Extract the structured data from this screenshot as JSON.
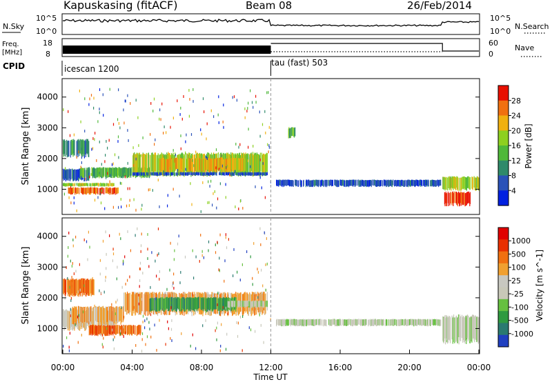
{
  "header": {
    "station": "Kapuskasing (fitACF)",
    "beam": "Beam 08",
    "date": "26/Feb/2014"
  },
  "panels": {
    "nsky": {
      "label": "N.Sky",
      "left_ticks": [
        "10^5",
        "10^0"
      ],
      "right_ticks": [
        "10^5",
        "10^0"
      ],
      "right_label": "N.Search",
      "right_label_style": "dotted"
    },
    "freq": {
      "label_line1": "Freq.",
      "label_line2": "[MHz]",
      "left_ticks": [
        "18",
        "8"
      ],
      "right_ticks": [
        "60",
        "0"
      ],
      "right_label": "Nave",
      "right_label_style": "dotted"
    },
    "cpid": {
      "label": "CPID",
      "programs": [
        {
          "name": "icescan 1200",
          "start_hour": 0
        },
        {
          "name": "tau (fast) 503",
          "start_hour": 12
        }
      ]
    }
  },
  "colors": {
    "power_scale": [
      "#0020e0",
      "#2a52b8",
      "#2f8a6a",
      "#4fb83a",
      "#8dd020",
      "#f0b010",
      "#f07010",
      "#e81000"
    ],
    "velocity_scale": [
      "#2040c0",
      "#2a7a70",
      "#2f9a40",
      "#66c040",
      "#c8c8b8",
      "#c8c8c0",
      "#f0a030",
      "#f07010",
      "#e83000",
      "#e00000"
    ]
  },
  "chart_data": [
    {
      "type": "heatmap",
      "name": "power",
      "ylabel": "Slant Range [km]",
      "colorbar_label": "Power [dB]",
      "colorbar_ticks": [
        "28",
        "24",
        "20",
        "16",
        "12",
        "8",
        "4"
      ],
      "colorbar_range": [
        0,
        32
      ],
      "xlim": [
        0,
        24
      ],
      "ylim": [
        180,
        4600
      ],
      "y_ticks": [
        1000,
        2000,
        3000,
        4000
      ],
      "y_tick_labels": [
        "1000",
        "2000",
        "3000",
        "4000"
      ],
      "bands": [
        {
          "t0": 0.0,
          "t1": 1.5,
          "r0": 1300,
          "r1": 1650,
          "level": 1
        },
        {
          "t0": 0.0,
          "t1": 3.0,
          "r0": 1100,
          "r1": 1200,
          "level": 4
        },
        {
          "t0": 0.3,
          "t1": 3.2,
          "r0": 850,
          "r1": 1050,
          "level": 6
        },
        {
          "t0": 0.0,
          "t1": 1.5,
          "r0": 2100,
          "r1": 2600,
          "level": 2
        },
        {
          "t0": 1.0,
          "t1": 5.0,
          "r0": 1400,
          "r1": 1700,
          "level": 3
        },
        {
          "t0": 4.0,
          "t1": 11.8,
          "r0": 1500,
          "r1": 2150,
          "level": 4
        },
        {
          "t0": 5.5,
          "t1": 10.5,
          "r0": 1600,
          "r1": 2000,
          "level": 5
        },
        {
          "t0": 4.0,
          "t1": 11.8,
          "r0": 1450,
          "r1": 1550,
          "level": 1
        },
        {
          "t0": 12.3,
          "t1": 21.8,
          "r0": 1100,
          "r1": 1300,
          "level": 1
        },
        {
          "t0": 13.0,
          "t1": 13.4,
          "r0": 2700,
          "r1": 3000,
          "level": 3
        },
        {
          "t0": 21.9,
          "t1": 24.0,
          "r0": 1000,
          "r1": 1400,
          "level": 4
        },
        {
          "t0": 22.0,
          "t1": 23.5,
          "r0": 500,
          "r1": 900,
          "level": 7
        }
      ]
    },
    {
      "type": "heatmap",
      "name": "velocity",
      "ylabel": "Slant Range [km]",
      "colorbar_label": "Velocity [m s^-1]",
      "colorbar_ticks": [
        "1000",
        "500",
        "100",
        "25",
        "-25",
        "-100",
        "-500",
        "-1000"
      ],
      "xlim": [
        0,
        24
      ],
      "ylim": [
        180,
        4600
      ],
      "y_ticks": [
        1000,
        2000,
        3000,
        4000
      ],
      "y_tick_labels": [
        "1000",
        "2000",
        "3000",
        "4000"
      ],
      "bands": [
        {
          "t0": 0.0,
          "t1": 3.0,
          "r0": 1000,
          "r1": 1600,
          "level": 5
        },
        {
          "t0": 0.5,
          "t1": 3.5,
          "r0": 1200,
          "r1": 1700,
          "level": 6
        },
        {
          "t0": 0.0,
          "t1": 1.8,
          "r0": 2100,
          "r1": 2600,
          "level": 7
        },
        {
          "t0": 1.5,
          "t1": 4.5,
          "r0": 800,
          "r1": 1100,
          "level": 7
        },
        {
          "t0": 3.5,
          "t1": 11.8,
          "r0": 1500,
          "r1": 2150,
          "level": 6
        },
        {
          "t0": 5.0,
          "t1": 10.0,
          "r0": 1600,
          "r1": 2000,
          "level": 2
        },
        {
          "t0": 9.5,
          "t1": 11.8,
          "r0": 1700,
          "r1": 1900,
          "level": 4
        },
        {
          "t0": 12.3,
          "t1": 21.8,
          "r0": 1100,
          "r1": 1300,
          "level": 4
        },
        {
          "t0": 21.9,
          "t1": 24.0,
          "r0": 600,
          "r1": 1400,
          "level": 4
        }
      ]
    }
  ],
  "x_axis": {
    "label": "Time UT",
    "ticks": [
      0,
      4,
      8,
      12,
      16,
      20,
      24
    ],
    "tick_labels": [
      "00:00",
      "04:00",
      "08:00",
      "12:00",
      "16:00",
      "20:00",
      "00:00"
    ]
  }
}
